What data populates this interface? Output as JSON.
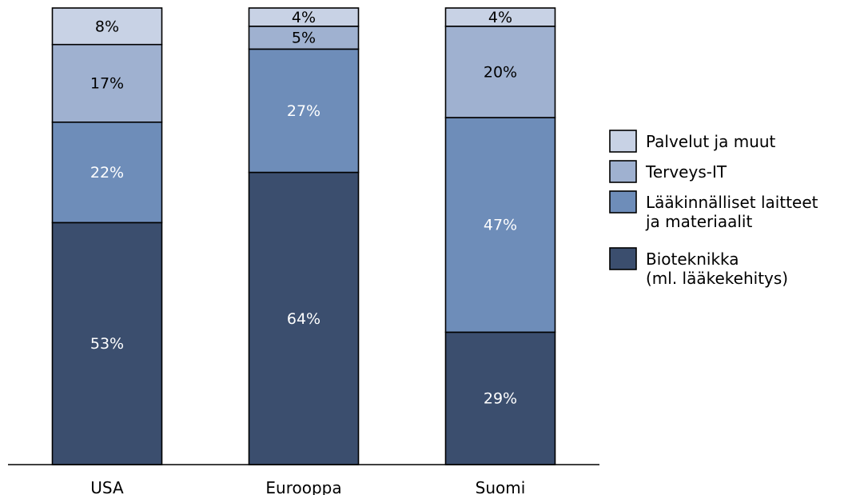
{
  "chart_data": {
    "type": "bar",
    "stacked": true,
    "categories": [
      "USA",
      "Eurooppa",
      "Suomi"
    ],
    "series": [
      {
        "name": "Bioteknikka (ml. lääkekehitys)",
        "values": [
          53,
          64,
          29
        ],
        "color": "#3b4e6e",
        "label_color": "#ffffff"
      },
      {
        "name": "Lääkinnälliset laitteet ja materiaalit",
        "values": [
          22,
          27,
          47
        ],
        "color": "#6e8db9",
        "label_color": "#ffffff"
      },
      {
        "name": "Terveys-IT",
        "values": [
          17,
          5,
          20
        ],
        "color": "#9fb1d0",
        "label_color": "#000000"
      },
      {
        "name": "Palvelut ja muut",
        "values": [
          8,
          4,
          4
        ],
        "color": "#c8d2e5",
        "label_color": "#000000"
      }
    ],
    "data_labels": [
      [
        "53%",
        "64%",
        "29%"
      ],
      [
        "22%",
        "27%",
        "47%"
      ],
      [
        "17%",
        "5%",
        "20%"
      ],
      [
        "8%",
        "4%",
        "4%"
      ]
    ],
    "legend": {
      "position": "right",
      "entries": [
        {
          "lines": [
            "Palvelut ja muut"
          ],
          "color": "#c8d2e5"
        },
        {
          "lines": [
            "Terveys-IT"
          ],
          "color": "#9fb1d0"
        },
        {
          "lines": [
            "Lääkinnälliset laitteet",
            "ja materiaalit"
          ],
          "color": "#6e8db9"
        },
        {
          "lines": [
            "Bioteknikka",
            "(ml. lääkekehitys)"
          ],
          "color": "#3b4e6e"
        }
      ]
    },
    "ylim": [
      0,
      100
    ],
    "grid": false,
    "title": "",
    "xlabel": "",
    "ylabel": ""
  }
}
